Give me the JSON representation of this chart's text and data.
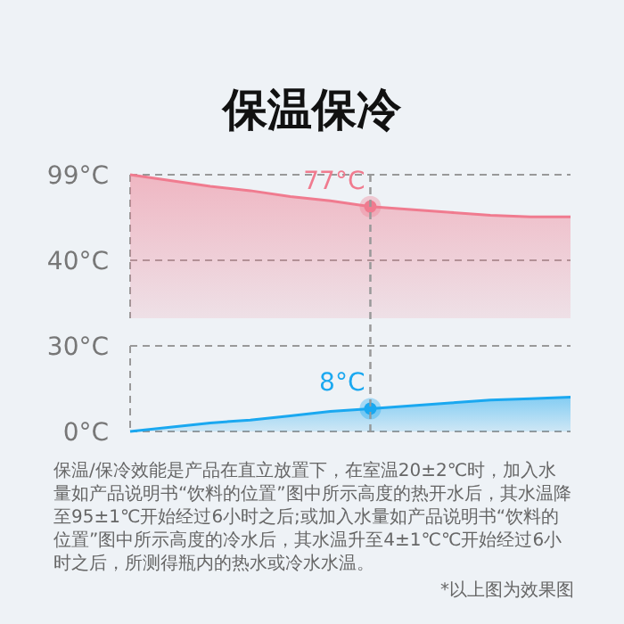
{
  "chart_data": [
    {
      "type": "area",
      "title": "保温保冷",
      "categories": [
        null,
        null,
        null,
        null,
        null,
        null,
        null,
        null,
        null,
        null,
        null,
        null
      ],
      "ylim": [
        0,
        99
      ],
      "yticks": [
        {
          "value": 99,
          "label": "99°C"
        },
        {
          "value": 40,
          "label": "40°C"
        }
      ],
      "grid": "y",
      "series": [
        {
          "color": "#f07b8f",
          "values": [
            99,
            95,
            91,
            88,
            84,
            81,
            77,
            75,
            73,
            71,
            70,
            70
          ]
        },
        {
          "type": "scatter",
          "marker": "circle",
          "color": "#f07b8f",
          "values": [
            null,
            null,
            null,
            null,
            null,
            null,
            77,
            null,
            null,
            null,
            null,
            null
          ],
          "value_labels": [
            null,
            null,
            null,
            null,
            null,
            null,
            "77°C",
            null,
            null,
            null,
            null,
            null
          ]
        }
      ]
    },
    {
      "type": "area",
      "categories": [
        null,
        null,
        null,
        null,
        null,
        null,
        null,
        null,
        null,
        null,
        null,
        null
      ],
      "ylim": [
        0,
        30
      ],
      "yticks": [
        {
          "value": 30,
          "label": "30°C"
        },
        {
          "value": 0,
          "label": "0°C"
        }
      ],
      "grid": "y",
      "series": [
        {
          "color": "#1aa8f0",
          "values": [
            0,
            1.5,
            3,
            4,
            5.5,
            7,
            8,
            9,
            10,
            11,
            11.5,
            12
          ]
        },
        {
          "type": "scatter",
          "marker": "circle",
          "color": "#1aa8f0",
          "values": [
            null,
            null,
            null,
            null,
            null,
            null,
            8,
            null,
            null,
            null,
            null,
            null
          ],
          "value_labels": [
            null,
            null,
            null,
            null,
            null,
            null,
            "8°C",
            null,
            null,
            null,
            null,
            null
          ]
        }
      ],
      "annotations": [
        "保温/保冷效能是产品在直立放置下，在室温20±2℃时，加入水量如产品说明书“饮料的位置”图中所示高度的热开水后，其水温降至95±1℃开始经过6小时之后;或加入水量如产品说明书“饮料的位置”图中所示高度的冷水后，其水温升至4±1℃℃开始经过6小时之后，所测得瓶内的热水或冷水水温。",
        "*以上图为效果图"
      ]
    }
  ]
}
